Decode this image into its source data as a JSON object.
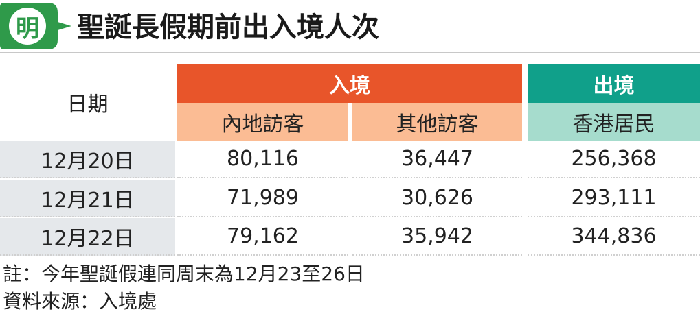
{
  "header": {
    "logo": "明",
    "title": "聖誕長假期前出入境人次"
  },
  "table": {
    "date_header": "日期",
    "groups": [
      "入境",
      "出境"
    ],
    "subheaders": [
      "內地訪客",
      "其他訪客",
      "香港居民"
    ],
    "rows": [
      [
        "12月20日",
        "80,116",
        "36,447",
        "256,368"
      ],
      [
        "12月21日",
        "71,989",
        "30,626",
        "293,111"
      ],
      [
        "12月22日",
        "79,162",
        "35,942",
        "344,836"
      ]
    ]
  },
  "notes": [
    "註：今年聖誕假連同周末為12月23至26日",
    "資料來源：入境處"
  ]
}
